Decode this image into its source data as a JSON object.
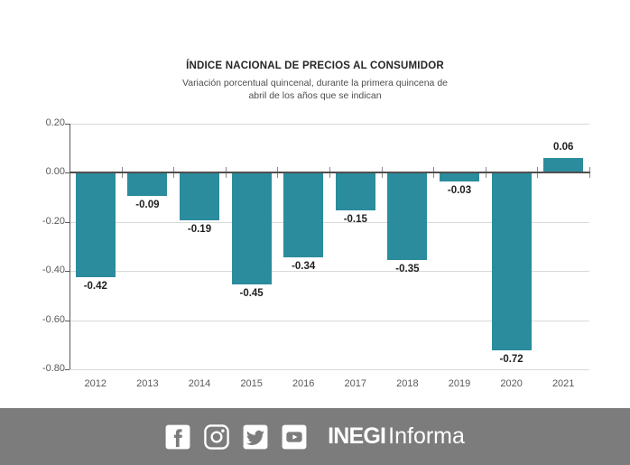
{
  "chart": {
    "title": "ÍNDICE NACIONAL DE PRECIOS AL CONSUMIDOR",
    "subtitle_lines": [
      "Variación porcentual quincenal, durante la primera quincena de",
      "abril de los años que se indican"
    ]
  },
  "chart_data": {
    "type": "bar",
    "title": "ÍNDICE NACIONAL DE PRECIOS AL CONSUMIDOR",
    "subtitle": "Variación porcentual quincenal, durante la primera quincena de abril de los años que se indican",
    "categories": [
      "2012",
      "2013",
      "2014",
      "2015",
      "2016",
      "2017",
      "2018",
      "2019",
      "2020",
      "2021"
    ],
    "values": [
      -0.42,
      -0.09,
      -0.19,
      -0.45,
      -0.34,
      -0.15,
      -0.35,
      -0.03,
      -0.72,
      0.06
    ],
    "data_labels": [
      "-0.42",
      "-0.09",
      "-0.19",
      "-0.45",
      "-0.34",
      "-0.15",
      "-0.35",
      "-0.03",
      "-0.72",
      "0.06"
    ],
    "ylim": [
      -0.8,
      0.2
    ],
    "yticks": [
      0.2,
      0.0,
      -0.2,
      -0.4,
      -0.6,
      -0.8
    ],
    "ytick_labels": [
      "0.20",
      "0.00",
      "-0.20",
      "-0.40",
      "-0.60",
      "-0.80"
    ],
    "bar_color": "#2b8c9d",
    "grid": true,
    "legend": false
  },
  "footer": {
    "background": "#7c7c7c",
    "icons": [
      {
        "name": "facebook-icon"
      },
      {
        "name": "instagram-icon"
      },
      {
        "name": "twitter-icon"
      },
      {
        "name": "youtube-icon"
      }
    ],
    "brand_bold": "INEGI",
    "brand_regular": "Informa"
  }
}
